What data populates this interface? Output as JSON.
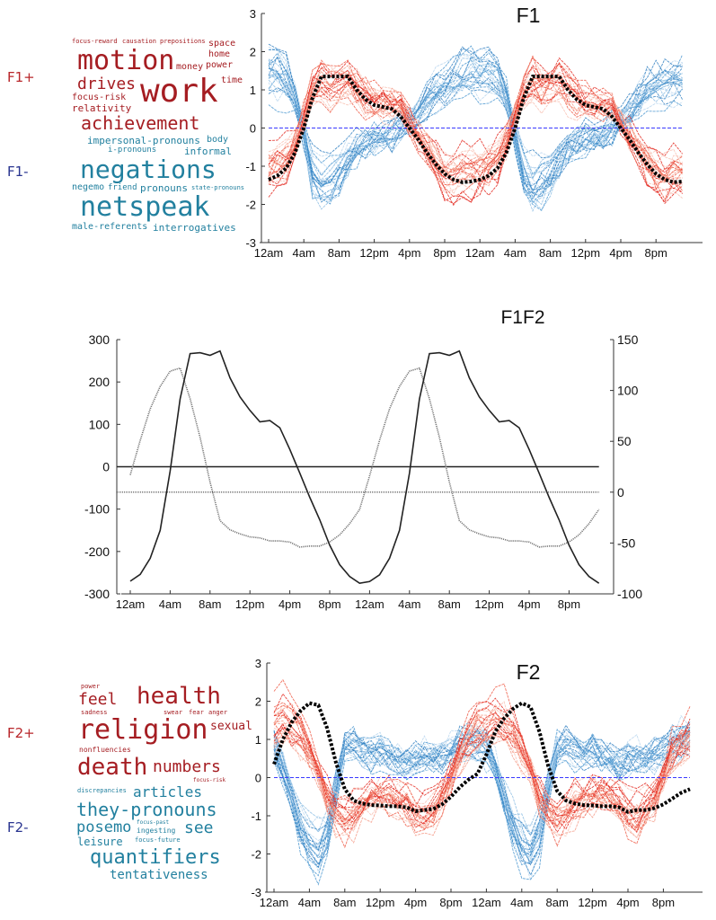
{
  "panels": {
    "f1": {
      "label_pos": "F1+",
      "label_neg": "F1-",
      "words_pos": [
        "motion",
        "work",
        "drives",
        "achievement",
        "focus-reward",
        "prepositions",
        "space",
        "home",
        "power",
        "money",
        "time",
        "causation",
        "focus-risk",
        "relativity"
      ],
      "words_neg": [
        "impersonal-pronouns",
        "i-pronouns",
        "informal",
        "negations",
        "negemo",
        "pronouns",
        "body",
        "friend",
        "state-pronouns",
        "netspeak",
        "interrogatives",
        "male-referents"
      ]
    },
    "f2": {
      "label_pos": "F2+",
      "label_neg": "F2-",
      "words_pos": [
        "health",
        "feel",
        "religion",
        "death",
        "numbers",
        "sexual",
        "nonfluencies",
        "sadness",
        "swear",
        "fear",
        "anger",
        "power",
        "focus-risk"
      ],
      "words_neg": [
        "discrepancies",
        "articles",
        "they-pronouns",
        "posemo",
        "see",
        "ingesting",
        "focus-past",
        "leisure",
        "focus-future",
        "quantifiers",
        "tentativeness"
      ]
    }
  },
  "colors": {
    "positive": "#e8392b",
    "negative": "#3a8cc8",
    "mean": "#000000",
    "zero_line": "#3a3aff"
  },
  "chart_data": [
    {
      "type": "line",
      "title": "F1",
      "x_tick_labels": [
        "12am",
        "4am",
        "8am",
        "12pm",
        "4pm",
        "8pm",
        "12am",
        "4am",
        "8am",
        "12pm",
        "4pm",
        "8pm"
      ],
      "y_ticks": [
        3,
        2,
        1,
        0,
        -1,
        -2,
        -3
      ],
      "ylim": [
        -3,
        3
      ],
      "reference_line": 0,
      "series": [
        {
          "role": "mean",
          "values": [
            -1.35,
            -1.25,
            -1.05,
            -0.65,
            0.0,
            0.8,
            1.35,
            1.35,
            1.35,
            1.35,
            1.0,
            0.75,
            0.6,
            0.55,
            0.5,
            0.3,
            0.0,
            -0.3,
            -0.65,
            -0.95,
            -1.2,
            -1.35,
            -1.42,
            -1.4,
            -1.35,
            -1.25,
            -1.05,
            -0.65,
            0.0,
            0.8,
            1.35,
            1.35,
            1.35,
            1.35,
            1.0,
            0.75,
            0.6,
            0.55,
            0.5,
            0.3,
            0.0,
            -0.3,
            -0.65,
            -0.95,
            -1.2,
            -1.35,
            -1.42,
            -1.4
          ]
        },
        {
          "role": "positive",
          "values": [
            -1.2,
            -1.1,
            -0.9,
            -0.4,
            0.3,
            1.1,
            1.4,
            1.2,
            1.3,
            1.4,
            1.1,
            0.9,
            0.8,
            0.7,
            0.7,
            0.6,
            0.2,
            -0.2,
            -0.6,
            -1.0,
            -1.3,
            -1.4,
            -1.3,
            -1.3,
            -1.2,
            -1.1,
            -0.9,
            -0.4,
            0.3,
            1.1,
            1.4,
            1.2,
            1.3,
            1.4,
            1.1,
            0.9,
            0.8,
            0.7,
            0.7,
            0.6,
            0.2,
            -0.2,
            -0.6,
            -1.0,
            -1.3,
            -1.4,
            -1.3,
            -1.3
          ]
        },
        {
          "role": "negative",
          "values": [
            1.5,
            1.5,
            1.3,
            0.8,
            -0.2,
            -1.3,
            -1.6,
            -1.5,
            -1.3,
            -0.9,
            -0.6,
            -0.4,
            -0.3,
            -0.25,
            -0.2,
            0.0,
            0.2,
            0.4,
            0.7,
            0.95,
            1.1,
            1.3,
            1.4,
            1.5,
            1.5,
            1.5,
            1.3,
            0.8,
            -0.2,
            -1.3,
            -1.6,
            -1.5,
            -1.3,
            -0.9,
            -0.6,
            -0.4,
            -0.3,
            -0.25,
            -0.2,
            0.0,
            0.2,
            0.4,
            0.7,
            0.95,
            1.1,
            1.2,
            1.25,
            1.3
          ]
        }
      ]
    },
    {
      "type": "line",
      "title": "F1F2",
      "x_tick_labels": [
        "12am",
        "4am",
        "8am",
        "12pm",
        "4pm",
        "8pm",
        "12am",
        "4am",
        "8am",
        "12pm",
        "4pm",
        "8pm"
      ],
      "y_ticks_left": [
        300,
        200,
        100,
        0,
        -100,
        -200,
        -300
      ],
      "ylim_left": [
        -300,
        300
      ],
      "y_ticks_right": [
        150,
        100,
        50,
        0,
        -50,
        -100
      ],
      "ylim_right": [
        -100,
        150
      ],
      "reference_lines": {
        "left": 0,
        "right": 0
      },
      "series": [
        {
          "style": "solid",
          "axis": "left",
          "values": [
            -270,
            -254,
            -216,
            -150,
            -10,
            160,
            267,
            269,
            263,
            273,
            210,
            165,
            133,
            106,
            109,
            92,
            41,
            -15,
            -72,
            -125,
            -185,
            -231,
            -259,
            -275,
            -271,
            -255,
            -216,
            -150,
            -15,
            160,
            267,
            269,
            263,
            273,
            210,
            165,
            133,
            106,
            109,
            92,
            41,
            -15,
            -72,
            -125,
            -185,
            -231,
            -259,
            -275
          ]
        },
        {
          "style": "dotted",
          "axis": "right",
          "values": [
            17,
            51,
            82,
            104,
            119,
            122,
            92,
            54,
            10,
            -28,
            -37,
            -41,
            -44,
            -45,
            -48,
            -48,
            -49,
            -54,
            -53,
            -53,
            -49,
            -42,
            -31,
            -17,
            16,
            51,
            82,
            104,
            119,
            122,
            92,
            54,
            10,
            -28,
            -37,
            -41,
            -44,
            -45,
            -48,
            -48,
            -49,
            -54,
            -53,
            -53,
            -49,
            -42,
            -31,
            -17
          ]
        }
      ]
    },
    {
      "type": "line",
      "title": "F2",
      "x_tick_labels": [
        "12am",
        "4am",
        "8am",
        "12pm",
        "4pm",
        "8pm",
        "12am",
        "4am",
        "8am",
        "12pm",
        "4pm",
        "8pm"
      ],
      "y_ticks": [
        3,
        2,
        1,
        0,
        -1,
        -2,
        -3
      ],
      "ylim": [
        -3,
        3
      ],
      "reference_line": 0,
      "series": [
        {
          "role": "mean",
          "values": [
            0.35,
            1.0,
            1.45,
            1.75,
            1.95,
            1.9,
            1.3,
            0.4,
            -0.3,
            -0.6,
            -0.68,
            -0.72,
            -0.73,
            -0.75,
            -0.75,
            -0.78,
            -0.88,
            -0.85,
            -0.82,
            -0.7,
            -0.5,
            -0.25,
            -0.05,
            0.1,
            0.6,
            1.2,
            1.55,
            1.8,
            1.95,
            1.85,
            1.2,
            0.3,
            -0.35,
            -0.6,
            -0.68,
            -0.72,
            -0.73,
            -0.75,
            -0.75,
            -0.78,
            -0.9,
            -0.85,
            -0.85,
            -0.8,
            -0.7,
            -0.55,
            -0.4,
            -0.3
          ]
        },
        {
          "role": "positive",
          "values": [
            1.5,
            1.7,
            1.6,
            1.3,
            0.8,
            0.2,
            -0.6,
            -1.0,
            -1.2,
            -1.1,
            -0.8,
            -0.6,
            -0.5,
            -0.5,
            -0.6,
            -0.8,
            -1.1,
            -1.2,
            -1.0,
            -0.6,
            0.0,
            0.7,
            1.2,
            1.5,
            1.5,
            1.7,
            1.6,
            1.3,
            0.8,
            0.2,
            -0.6,
            -1.0,
            -1.2,
            -1.1,
            -0.8,
            -0.6,
            -0.5,
            -0.5,
            -0.6,
            -0.8,
            -1.1,
            -1.2,
            -1.0,
            -0.6,
            0.0,
            0.7,
            1.0,
            1.2
          ]
        },
        {
          "role": "negative",
          "values": [
            0.8,
            0.3,
            -0.5,
            -1.3,
            -1.8,
            -2.0,
            -1.5,
            -0.3,
            0.8,
            0.9,
            0.7,
            0.6,
            0.7,
            0.6,
            0.5,
            0.4,
            0.5,
            0.6,
            0.5,
            0.6,
            0.7,
            0.9,
            1.0,
            0.9,
            0.8,
            0.3,
            -0.5,
            -1.3,
            -1.8,
            -2.0,
            -1.5,
            -0.3,
            0.8,
            0.9,
            0.7,
            0.6,
            0.7,
            0.6,
            0.5,
            0.4,
            0.5,
            0.6,
            0.5,
            0.6,
            0.7,
            0.9,
            1.0,
            1.1
          ]
        }
      ]
    }
  ]
}
